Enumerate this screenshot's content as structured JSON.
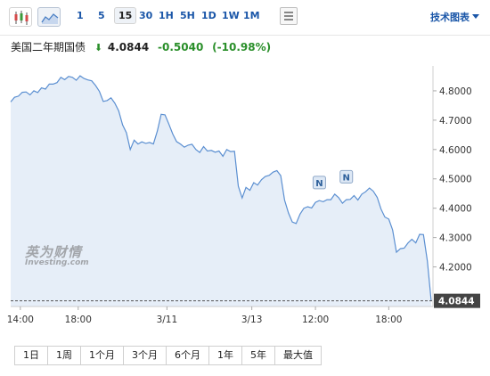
{
  "toolbar": {
    "timeframes": [
      "1",
      "5",
      "15",
      "30",
      "1H",
      "5H",
      "1D",
      "1W",
      "1M"
    ],
    "active_timeframe": "15",
    "tech_link": "技术图表"
  },
  "instrument": {
    "name": "美国二年期国债",
    "last": "4.0844",
    "change": "-0.5040",
    "change_pct": "(-10.98%)"
  },
  "watermark": {
    "line1": "英为财情",
    "line2": "Investing.com"
  },
  "colors": {
    "line": "#5b8fd1",
    "fill": "#e6eef8",
    "down": "#2a8f2a",
    "link": "#1a56a8"
  },
  "chart_data": {
    "type": "area",
    "x_tick_labels": [
      "14:00",
      "18:00",
      "3/11",
      "3/13",
      "12:00",
      "18:00"
    ],
    "y_tick_labels": [
      "4.8000",
      "4.7000",
      "4.6000",
      "4.5000",
      "4.4000",
      "4.3000",
      "4.2000"
    ],
    "ylim": [
      4.0651,
      4.8848
    ],
    "last_label": "4.0844",
    "last_value": 4.0844,
    "markers": [
      "N",
      "N"
    ],
    "values": [
      4.762,
      4.778,
      4.782,
      4.795,
      4.796,
      4.786,
      4.8,
      4.794,
      4.81,
      4.806,
      4.823,
      4.823,
      4.828,
      4.846,
      4.838,
      4.849,
      4.846,
      4.836,
      4.851,
      4.842,
      4.837,
      4.834,
      4.818,
      4.798,
      4.764,
      4.767,
      4.776,
      4.758,
      4.732,
      4.684,
      4.657,
      4.6,
      4.632,
      4.619,
      4.626,
      4.621,
      4.624,
      4.619,
      4.663,
      4.72,
      4.718,
      4.687,
      4.653,
      4.627,
      4.619,
      4.608,
      4.615,
      4.618,
      4.6,
      4.59,
      4.61,
      4.595,
      4.597,
      4.591,
      4.595,
      4.577,
      4.6,
      4.593,
      4.594,
      4.475,
      4.435,
      4.471,
      4.461,
      4.487,
      4.479,
      4.497,
      4.508,
      4.512,
      4.523,
      4.528,
      4.511,
      4.428,
      4.384,
      4.353,
      4.348,
      4.38,
      4.4,
      4.405,
      4.401,
      4.42,
      4.426,
      4.422,
      4.429,
      4.429,
      4.448,
      4.436,
      4.417,
      4.429,
      4.43,
      4.443,
      4.428,
      4.448,
      4.456,
      4.469,
      4.458,
      4.437,
      4.397,
      4.37,
      4.363,
      4.326,
      4.25,
      4.262,
      4.264,
      4.282,
      4.294,
      4.282,
      4.311,
      4.31,
      4.22,
      4.084
    ]
  },
  "periods": [
    "1日",
    "1周",
    "1个月",
    "3个月",
    "6个月",
    "1年",
    "5年",
    "最大值"
  ]
}
